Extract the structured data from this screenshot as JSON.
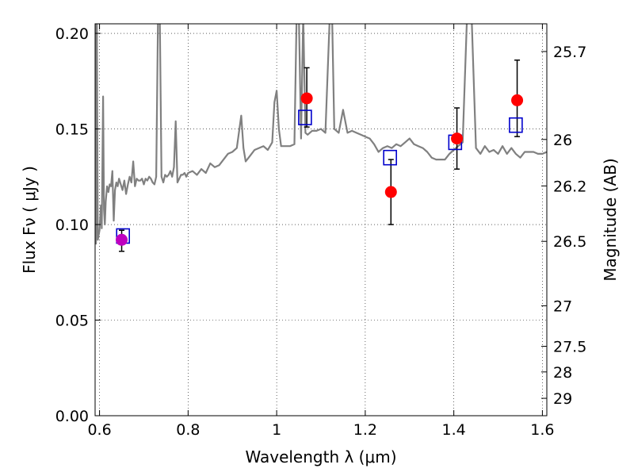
{
  "chart_data": {
    "type": "scatter",
    "xlabel": "Wavelength  λ (μm)",
    "ylabel_left": "Flux  Fν  ( μJy )",
    "ylabel_right": "Magnitude (AB)",
    "xlim": [
      0.59,
      1.61
    ],
    "ylim": [
      0.0,
      0.205
    ],
    "grid": true,
    "x_ticks": [
      0.6,
      0.8,
      1.0,
      1.2,
      1.4,
      1.6
    ],
    "x_tick_labels": [
      "0.6",
      "0.8",
      "1",
      "1.2",
      "1.4",
      "1.6"
    ],
    "y_ticks": [
      0.0,
      0.05,
      0.1,
      0.15,
      0.2
    ],
    "y_tick_labels": [
      "0.00",
      "0.05",
      "0.10",
      "0.15",
      "0.20"
    ],
    "right_ticks": [
      {
        "label": "25.7",
        "flux": 0.1905
      },
      {
        "label": "26",
        "flux": 0.1445
      },
      {
        "label": "26.2",
        "flux": 0.1202
      },
      {
        "label": "26.5",
        "flux": 0.0912
      },
      {
        "label": "27",
        "flux": 0.0575
      },
      {
        "label": "27.5",
        "flux": 0.0363
      },
      {
        "label": "28",
        "flux": 0.0229
      },
      {
        "label": "29",
        "flux": 0.0091
      }
    ],
    "colors": {
      "spectrum": "#808080",
      "observed": "#ff0000",
      "observed_first": "#bf00bf",
      "model": "#0000cc",
      "errorbar": "#000000"
    },
    "series": [
      {
        "kind": "spectrum",
        "x": [
          0.587,
          0.59,
          0.592,
          0.594,
          0.596,
          0.6,
          0.603,
          0.605,
          0.608,
          0.61,
          0.612,
          0.614,
          0.617,
          0.62,
          0.623,
          0.626,
          0.629,
          0.632,
          0.635,
          0.638,
          0.641,
          0.644,
          0.648,
          0.652,
          0.656,
          0.66,
          0.664,
          0.668,
          0.672,
          0.676,
          0.68,
          0.684,
          0.688,
          0.692,
          0.696,
          0.7,
          0.704,
          0.708,
          0.712,
          0.716,
          0.72,
          0.724,
          0.728,
          0.732,
          0.736,
          0.74,
          0.744,
          0.748,
          0.752,
          0.756,
          0.76,
          0.764,
          0.768,
          0.772,
          0.776,
          0.78,
          0.784,
          0.788,
          0.792,
          0.796,
          0.8,
          0.81,
          0.82,
          0.83,
          0.84,
          0.85,
          0.86,
          0.87,
          0.88,
          0.89,
          0.9,
          0.91,
          0.92,
          0.925,
          0.93,
          0.94,
          0.95,
          0.96,
          0.97,
          0.98,
          0.99,
          0.995,
          1.0,
          1.005,
          1.01,
          1.02,
          1.03,
          1.04,
          1.045,
          1.05,
          1.055,
          1.06,
          1.065,
          1.07,
          1.08,
          1.09,
          1.1,
          1.11,
          1.12,
          1.125,
          1.13,
          1.135,
          1.14,
          1.15,
          1.16,
          1.17,
          1.18,
          1.19,
          1.2,
          1.21,
          1.22,
          1.23,
          1.24,
          1.25,
          1.26,
          1.27,
          1.28,
          1.29,
          1.3,
          1.31,
          1.32,
          1.33,
          1.34,
          1.35,
          1.36,
          1.37,
          1.38,
          1.39,
          1.4,
          1.41,
          1.415,
          1.42,
          1.43,
          1.44,
          1.45,
          1.46,
          1.47,
          1.48,
          1.49,
          1.5,
          1.51,
          1.52,
          1.53,
          1.54,
          1.55,
          1.56,
          1.57,
          1.58,
          1.59,
          1.6,
          1.61
        ],
        "y": [
          0.073,
          0.21,
          0.09,
          0.21,
          0.092,
          0.097,
          0.11,
          0.098,
          0.167,
          0.108,
          0.1,
          0.112,
          0.12,
          0.117,
          0.121,
          0.12,
          0.128,
          0.102,
          0.118,
          0.122,
          0.12,
          0.124,
          0.121,
          0.118,
          0.123,
          0.116,
          0.121,
          0.125,
          0.122,
          0.133,
          0.12,
          0.124,
          0.123,
          0.123,
          0.124,
          0.121,
          0.124,
          0.123,
          0.125,
          0.124,
          0.122,
          0.121,
          0.125,
          0.21,
          0.21,
          0.125,
          0.122,
          0.126,
          0.125,
          0.126,
          0.128,
          0.125,
          0.13,
          0.154,
          0.122,
          0.124,
          0.126,
          0.126,
          0.127,
          0.125,
          0.127,
          0.128,
          0.126,
          0.129,
          0.127,
          0.132,
          0.13,
          0.131,
          0.134,
          0.137,
          0.138,
          0.14,
          0.157,
          0.14,
          0.133,
          0.136,
          0.139,
          0.14,
          0.141,
          0.139,
          0.143,
          0.164,
          0.17,
          0.15,
          0.141,
          0.141,
          0.141,
          0.142,
          0.21,
          0.21,
          0.145,
          0.21,
          0.148,
          0.147,
          0.149,
          0.149,
          0.15,
          0.148,
          0.21,
          0.21,
          0.15,
          0.149,
          0.148,
          0.16,
          0.148,
          0.149,
          0.148,
          0.147,
          0.146,
          0.145,
          0.142,
          0.138,
          0.14,
          0.141,
          0.14,
          0.142,
          0.141,
          0.143,
          0.145,
          0.142,
          0.141,
          0.14,
          0.138,
          0.135,
          0.134,
          0.134,
          0.134,
          0.137,
          0.139,
          0.141,
          0.142,
          0.143,
          0.21,
          0.21,
          0.14,
          0.137,
          0.141,
          0.138,
          0.139,
          0.137,
          0.141,
          0.137,
          0.14,
          0.137,
          0.135,
          0.138,
          0.138,
          0.138,
          0.137,
          0.137,
          0.138
        ]
      },
      {
        "kind": "observed",
        "x": [
          0.65,
          1.068,
          1.258,
          1.407,
          1.543
        ],
        "y": [
          0.092,
          0.166,
          0.117,
          0.145,
          0.165
        ],
        "yerr_low": [
          0.006,
          0.015,
          0.017,
          0.016,
          0.019
        ],
        "yerr_high": [
          0.005,
          0.016,
          0.017,
          0.016,
          0.021
        ]
      },
      {
        "kind": "model",
        "x": [
          0.653,
          1.064,
          1.256,
          1.403,
          1.54
        ],
        "y": [
          0.094,
          0.156,
          0.135,
          0.143,
          0.152
        ]
      }
    ]
  }
}
